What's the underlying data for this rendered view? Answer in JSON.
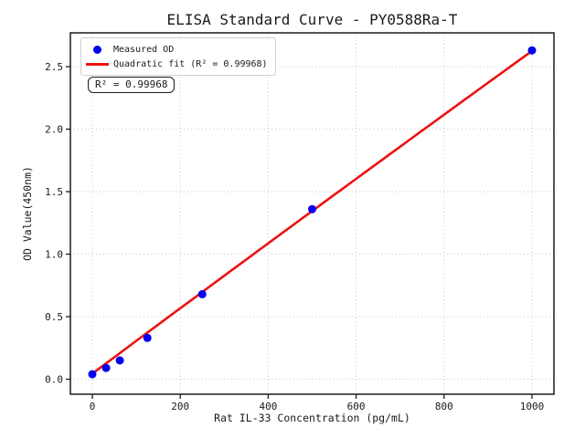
{
  "figure": {
    "background": "#ffffff",
    "text_color": "#1a1a1a",
    "grid_color": "#c9c9c9"
  },
  "chart_data": {
    "type": "scatter",
    "title": "ELISA Standard Curve - PY0588Ra-T",
    "xlabel": "Rat IL-33 Concentration (pg/mL)",
    "ylabel": "OD Value(450nm)",
    "xlim": [
      -50,
      1050
    ],
    "ylim": [
      -0.12,
      2.77
    ],
    "xticks": {
      "values": [
        0,
        200,
        400,
        600,
        800,
        1000
      ],
      "labels": [
        "0",
        "200",
        "400",
        "600",
        "800",
        "1000"
      ]
    },
    "yticks": {
      "values": [
        0,
        0.5,
        1.0,
        1.5,
        2.0,
        2.5
      ],
      "labels": [
        "0.0",
        "0.5",
        "1.0",
        "1.5",
        "2.0",
        "2.5"
      ]
    },
    "grid": {
      "visible": true,
      "style": "dotted"
    },
    "series": [
      {
        "name": "Measured OD",
        "type": "scatter",
        "marker": "circle",
        "color": "#0000ee",
        "x": [
          0,
          31.25,
          62.5,
          125,
          250,
          500,
          1000
        ],
        "y": [
          0.04,
          0.09,
          0.15,
          0.33,
          0.68,
          1.36,
          2.63
        ]
      },
      {
        "name": "Quadratic fit",
        "type": "line",
        "color": "#ee1111",
        "fit": {
          "kind": "quadratic",
          "a": 0.045,
          "b": 0.00262,
          "c": -4e-08,
          "x_start": 0,
          "x_end": 1000
        },
        "r_squared": 0.99968
      }
    ],
    "legend": {
      "position": "upper left",
      "items": [
        {
          "label": "Measured OD",
          "marker": "dot",
          "color": "#0000ee"
        },
        {
          "label": "Quadratic fit (R² = 0.99968)",
          "marker": "line",
          "color": "#ee1111"
        }
      ]
    },
    "annotation": {
      "text": "R² = 0.99968"
    }
  }
}
